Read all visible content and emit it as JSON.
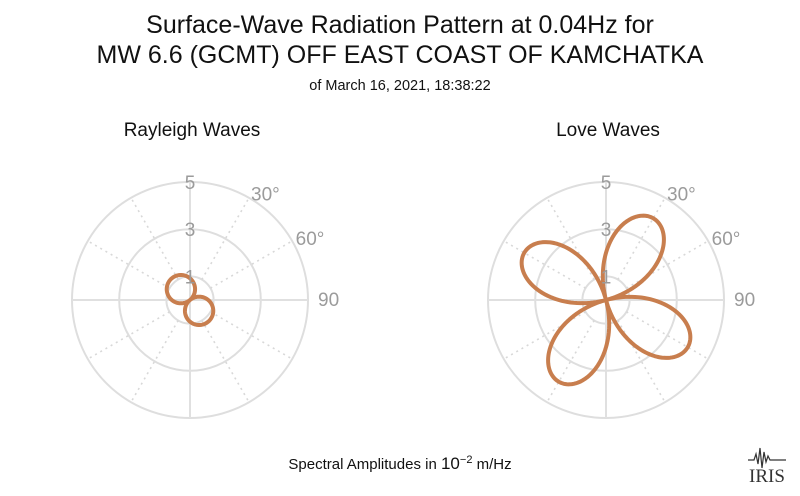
{
  "title": {
    "line1": "Surface-Wave Radiation Pattern at 0.04Hz for",
    "line2": "MW 6.6 (GCMT) OFF EAST COAST OF KAMCHATKA",
    "line3": "of March 16, 2021, 18:38:22"
  },
  "footer": {
    "prefix": "Spectral Amplitudes in ",
    "base": "10",
    "exponent": "−2",
    "unit": " m/Hz"
  },
  "logo": {
    "text": "IRIS"
  },
  "colors": {
    "pattern": "#c87e4e",
    "grid": "#dedede",
    "tick": "#9b9b9b"
  },
  "chart_data": [
    {
      "type": "polar-line",
      "subtitle": "Rayleigh Waves",
      "radial_ticks": [
        "1",
        "3",
        "5"
      ],
      "radial_tick_values": [
        1,
        3,
        5
      ],
      "angle_ticks": [
        "30°",
        "60°",
        "90°"
      ],
      "angle_tick_values": [
        30,
        60,
        90
      ],
      "rmax": 5,
      "pattern": {
        "shape": "two-lobe",
        "peak": 1.2,
        "lobe_axis_deg": 140
      }
    },
    {
      "type": "polar-line",
      "subtitle": "Love Waves",
      "radial_ticks": [
        "1",
        "3",
        "5"
      ],
      "radial_tick_values": [
        1,
        3,
        5
      ],
      "angle_ticks": [
        "30°",
        "60°",
        "90°"
      ],
      "angle_tick_values": [
        30,
        60,
        90
      ],
      "rmax": 5,
      "pattern": {
        "shape": "four-lobe",
        "peak": 4.0,
        "lobe_axes_deg": [
          30,
          120,
          210,
          300
        ]
      }
    }
  ]
}
